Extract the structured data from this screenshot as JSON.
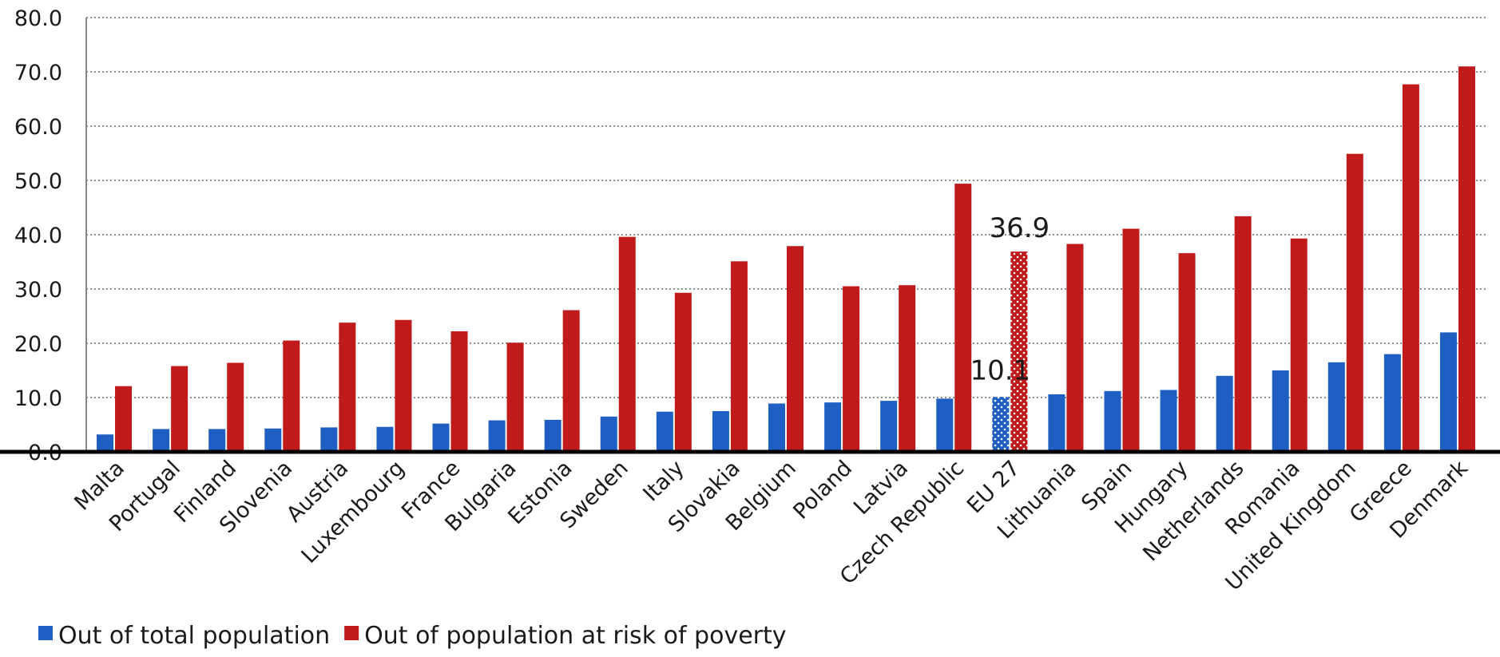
{
  "chart_data": {
    "type": "bar",
    "categories": [
      "Malta",
      "Portugal",
      "Finland",
      "Slovenia",
      "Austria",
      "Luxembourg",
      "France",
      "Bulgaria",
      "Estonia",
      "Sweden",
      "Italy",
      "Slovakia",
      "Belgium",
      "Poland",
      "Latvia",
      "Czech Republic",
      "EU 27",
      "Lithuania",
      "Spain",
      "Hungary",
      "Netherlands",
      "Romania",
      "United Kingdom",
      "Greece",
      "Denmark"
    ],
    "series": [
      {
        "name": "Out of total population",
        "color": "#1f5fc4",
        "values": [
          3.2,
          4.2,
          4.2,
          4.3,
          4.5,
          4.6,
          5.2,
          5.8,
          5.9,
          6.5,
          7.4,
          7.5,
          8.9,
          9.1,
          9.4,
          9.8,
          10.1,
          10.6,
          11.2,
          11.4,
          14.0,
          15.0,
          16.5,
          18.0,
          22.0
        ]
      },
      {
        "name": "Out of population at risk of poverty",
        "color": "#c01a1a",
        "values": [
          12.1,
          15.8,
          16.4,
          20.5,
          23.8,
          24.3,
          22.2,
          20.1,
          26.1,
          39.6,
          29.3,
          35.1,
          37.9,
          30.5,
          30.7,
          49.4,
          36.9,
          38.3,
          41.1,
          36.6,
          43.4,
          39.3,
          54.9,
          67.7,
          71.0
        ]
      }
    ],
    "highlight_category": "EU 27",
    "annotations": [
      "36.9",
      "10.1"
    ],
    "y_ticks": [
      "0.0",
      "10.0",
      "20.0",
      "30.0",
      "40.0",
      "50.0",
      "60.0",
      "70.0",
      "80.0"
    ],
    "ylim": [
      0,
      80
    ],
    "grid": true,
    "legend_position": "bottom-left",
    "xlabel": "",
    "ylabel": ""
  }
}
